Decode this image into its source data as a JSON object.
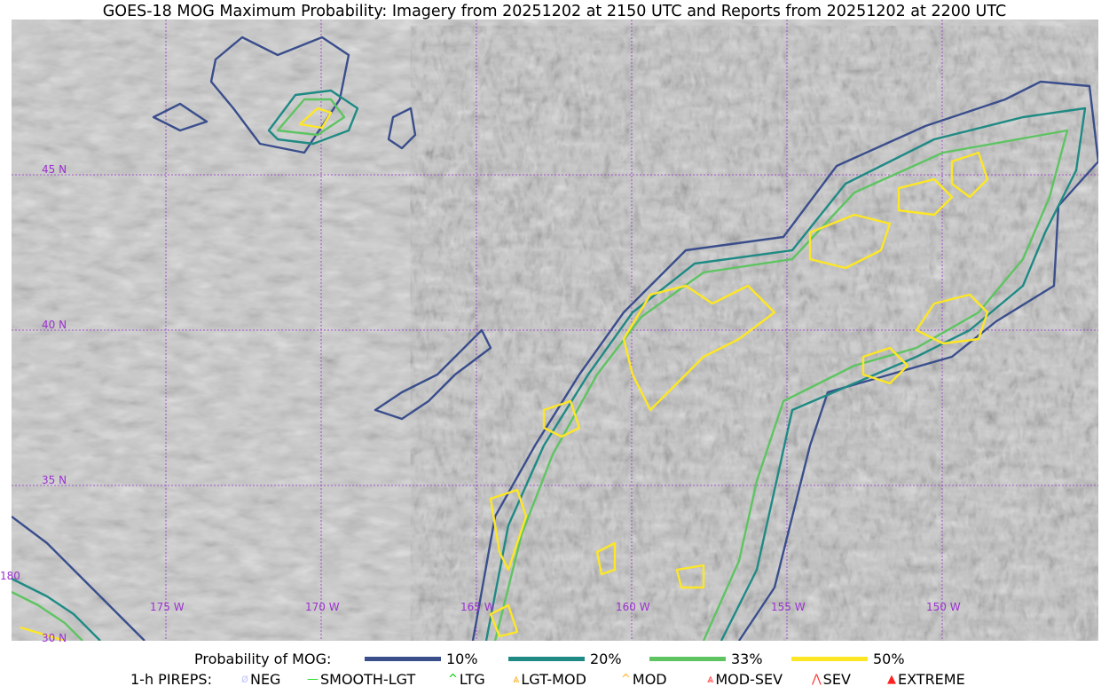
{
  "title": "GOES-18 MOG Maximum Probability: Imagery from 20251202 at 2150 UTC and Reports from 20251202 at 2200 UTC",
  "map": {
    "lon_labels": [
      "180",
      "175 W",
      "170 W",
      "165 W",
      "160 W",
      "155 W",
      "150 W"
    ],
    "lat_labels": [
      "30 N",
      "35 N",
      "40 N",
      "45 N"
    ],
    "grid_color": "#9b30d0"
  },
  "legend": {
    "probability_title": "Probability of MOG:",
    "levels": [
      {
        "label": "10%",
        "color": "#3a4e8c"
      },
      {
        "label": "20%",
        "color": "#1f8a84"
      },
      {
        "label": "33%",
        "color": "#5ec462"
      },
      {
        "label": "50%",
        "color": "#fde725"
      }
    ],
    "pireps_title": "1-h PIREPS:",
    "pireps": [
      {
        "label": "NEG",
        "icon": "neg-icon",
        "color": "#c8c8ff"
      },
      {
        "label": "SMOOTH-LGT",
        "icon": "line-icon",
        "color": "#22dd22"
      },
      {
        "label": "LTG",
        "icon": "caret-icon",
        "color": "#00cc00"
      },
      {
        "label": "LGT-MOD",
        "icon": "caret-bar-icon",
        "color": "#ffb020"
      },
      {
        "label": "MOD",
        "icon": "caret-icon",
        "color": "#ffb020"
      },
      {
        "label": "MOD-SEV",
        "icon": "double-caret-bar-icon",
        "color": "#ff3030"
      },
      {
        "label": "SEV",
        "icon": "double-caret-icon",
        "color": "#ff3030"
      },
      {
        "label": "EXTREME",
        "icon": "filled-triangle-icon",
        "color": "#ff2020"
      }
    ]
  }
}
